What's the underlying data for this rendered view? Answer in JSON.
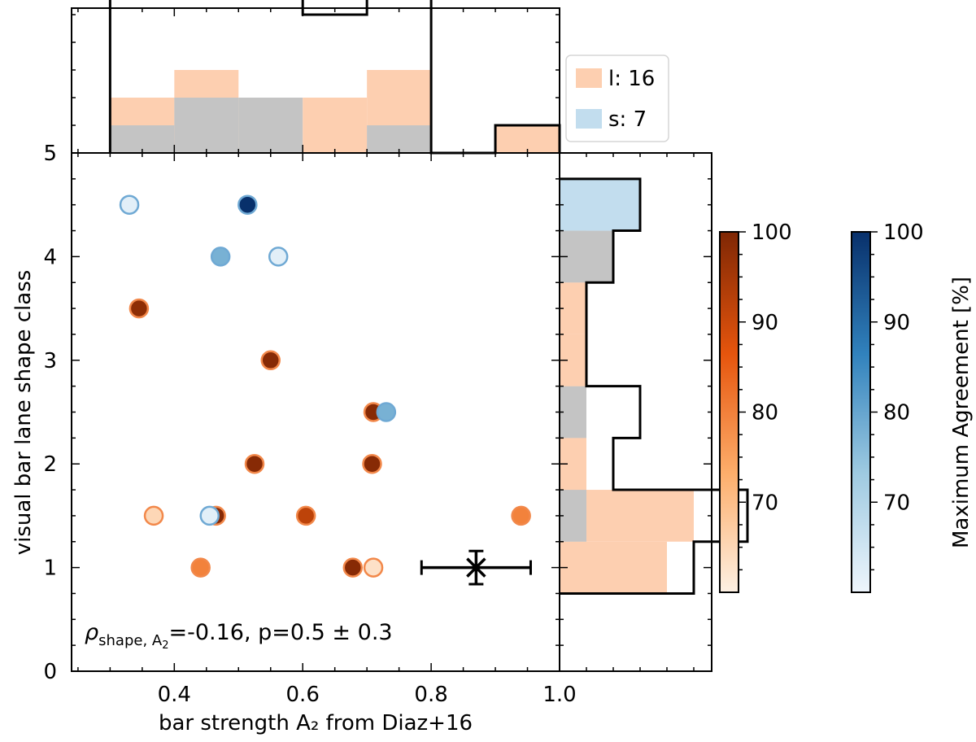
{
  "chart_data": {
    "type": "scatter",
    "xlabel": "bar strength A₂ from Diaz+16",
    "ylabel": "visual bar lane shape class",
    "xlim": [
      0.24,
      1.0
    ],
    "ylim": [
      0,
      5
    ],
    "x_ticks": [
      "0.4",
      "0.6",
      "0.8",
      "1.0"
    ],
    "y_ticks": [
      "0",
      "1",
      "2",
      "3",
      "4",
      "5"
    ],
    "annotation": {
      "rho_symbol": "ρ",
      "rho_subscript": "shape, A",
      "rho_subscript_index": "2",
      "rho_value": "=-0.16, p=0.5 ± 0.3"
    },
    "error_marker": {
      "x": 0.87,
      "y": 1.0,
      "xerr": 0.085,
      "yerr": 0.16
    },
    "legend": {
      "placement": "top-right",
      "entries": [
        {
          "label": "l: 16",
          "color": "#fdcfb0"
        },
        {
          "label": "s: 7",
          "color": "#c2ddee"
        }
      ]
    },
    "series": [
      {
        "name": "l",
        "edge_color": "#f2884a",
        "points": [
          {
            "x": 0.345,
            "y": 3.5,
            "agreement": 98
          },
          {
            "x": 0.55,
            "y": 3.0,
            "agreement": 99
          },
          {
            "x": 0.71,
            "y": 2.5,
            "agreement": 99
          },
          {
            "x": 0.525,
            "y": 2.0,
            "agreement": 99
          },
          {
            "x": 0.708,
            "y": 2.0,
            "agreement": 99
          },
          {
            "x": 0.368,
            "y": 1.5,
            "agreement": 65
          },
          {
            "x": 0.465,
            "y": 1.5,
            "agreement": 99
          },
          {
            "x": 0.605,
            "y": 1.5,
            "agreement": 92
          },
          {
            "x": 0.94,
            "y": 1.5,
            "agreement": 80
          },
          {
            "x": 0.441,
            "y": 1.0,
            "agreement": 80
          },
          {
            "x": 0.678,
            "y": 1.0,
            "agreement": 99
          },
          {
            "x": 0.71,
            "y": 1.0,
            "agreement": 63
          }
        ]
      },
      {
        "name": "s",
        "edge_color": "#6fa9d4",
        "points": [
          {
            "x": 0.33,
            "y": 4.5,
            "agreement": 62
          },
          {
            "x": 0.514,
            "y": 4.5,
            "agreement": 100
          },
          {
            "x": 0.472,
            "y": 4.0,
            "agreement": 78
          },
          {
            "x": 0.562,
            "y": 4.0,
            "agreement": 62
          },
          {
            "x": 0.73,
            "y": 2.5,
            "agreement": 78
          },
          {
            "x": 0.455,
            "y": 1.5,
            "agreement": 62
          }
        ]
      }
    ],
    "top_histogram": {
      "bin_edges": [
        0.3,
        0.4,
        0.5,
        0.6,
        0.7,
        0.8,
        0.9,
        1.0
      ],
      "total": [
        6,
        8,
        7,
        5,
        7,
        0,
        1
      ],
      "l": [
        2,
        3,
        0,
        2,
        3,
        0,
        1
      ],
      "overlap": [
        1,
        2,
        2,
        0,
        1,
        0,
        0
      ]
    },
    "right_histogram": {
      "bin_edges": [
        0.75,
        1.25,
        1.75,
        2.25,
        2.75,
        3.25,
        3.75,
        4.25,
        4.75
      ],
      "total": [
        5,
        7,
        2,
        3,
        1,
        1,
        2,
        3
      ],
      "l": [
        4,
        5,
        1,
        1,
        1,
        1,
        1,
        0
      ],
      "s": [
        0,
        1,
        0,
        1,
        0,
        0,
        2,
        3
      ]
    },
    "colorbars": [
      {
        "name": "orange",
        "range": [
          60,
          100
        ],
        "ticks": [
          "70",
          "80",
          "90",
          "100"
        ],
        "colors": [
          "#fdf0e3",
          "#fdae6b",
          "#e6550d",
          "#7f2704"
        ]
      },
      {
        "name": "blue",
        "range": [
          60,
          100
        ],
        "ticks": [
          "70",
          "80",
          "90",
          "100"
        ],
        "label": "Maximum Agreement [%]",
        "colors": [
          "#eef5fc",
          "#9ecae1",
          "#3182bd",
          "#08306b"
        ]
      }
    ]
  }
}
